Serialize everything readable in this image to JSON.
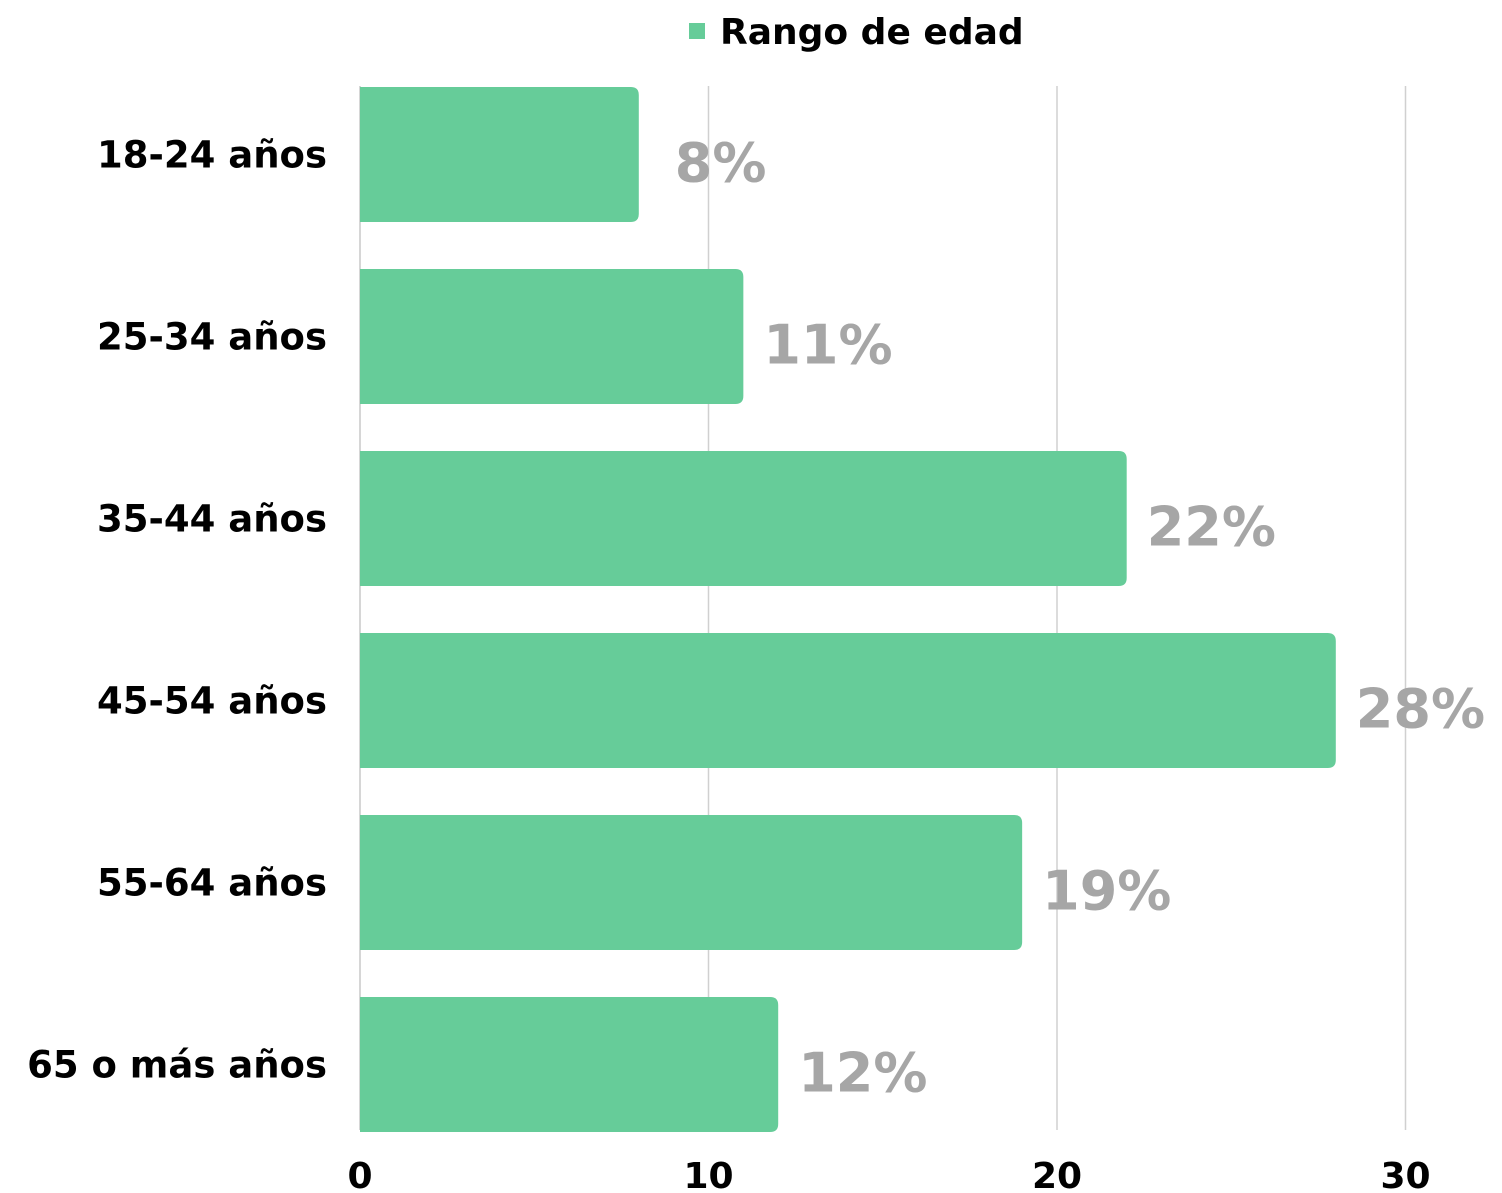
{
  "chart_data": {
    "type": "bar",
    "orientation": "horizontal",
    "categories": [
      "18-24 años",
      "25-34 años",
      "35-44 años",
      "45-54 años",
      "55-64 años",
      "65 o más años"
    ],
    "series": [
      {
        "name": "Rango de edad",
        "values": [
          8,
          11,
          22,
          28,
          19,
          12
        ],
        "data_labels": [
          "8%",
          "11%",
          "22%",
          "28%",
          "19%",
          "12%"
        ],
        "color": "#66cc99"
      }
    ],
    "x_ticks": [
      "0",
      "10",
      "20",
      "30"
    ],
    "xlim": [
      0,
      32
    ],
    "grid": true,
    "legend_position": "top",
    "data_label_color": "#a6a6a6",
    "grid_color": "#d0d0d0"
  }
}
